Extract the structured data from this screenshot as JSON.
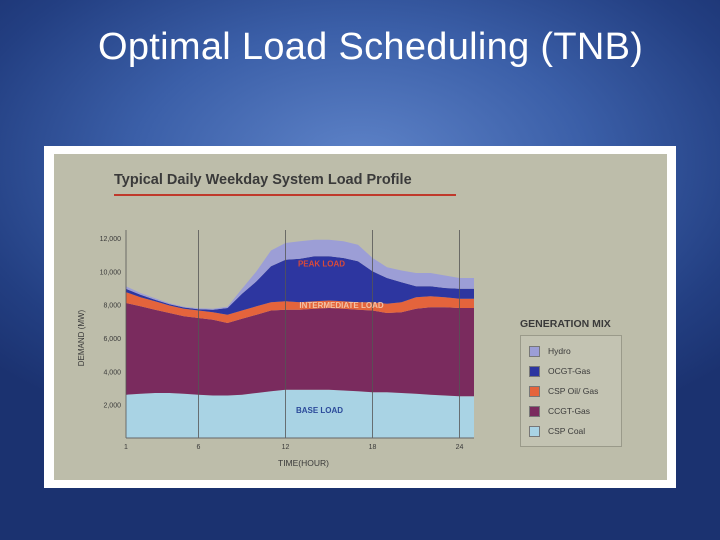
{
  "slide": {
    "title": "Optimal Load Scheduling (TNB)"
  },
  "chart_data": {
    "type": "area",
    "title": "Typical Daily Weekday System Load Profile",
    "xlabel": "TIME(HOUR)",
    "ylabel": "DEMAND (MW)",
    "xlim": [
      1,
      25
    ],
    "ylim": [
      0,
      12000
    ],
    "x_ticks": [
      "1",
      "6",
      "12",
      "18",
      "24"
    ],
    "y_ticks": [
      "2,000",
      "4,000",
      "6,000",
      "8,000",
      "10,000",
      "12,000"
    ],
    "x": [
      1,
      2,
      3,
      4,
      5,
      6,
      7,
      8,
      9,
      10,
      11,
      12,
      13,
      14,
      15,
      16,
      17,
      18,
      19,
      20,
      21,
      22,
      23,
      24,
      25
    ],
    "stacked": true,
    "series": [
      {
        "name": "CSP Coal",
        "color": "#a9d3e4",
        "values": [
          2600,
          2650,
          2700,
          2700,
          2650,
          2600,
          2550,
          2550,
          2600,
          2700,
          2800,
          2900,
          2900,
          2900,
          2900,
          2850,
          2800,
          2750,
          2750,
          2700,
          2650,
          2600,
          2550,
          2500,
          2500
        ]
      },
      {
        "name": "CCGT-Gas",
        "color": "#7a2b5e",
        "values": [
          5500,
          5250,
          5000,
          4800,
          4650,
          4600,
          4550,
          4350,
          4550,
          4700,
          4850,
          4800,
          4800,
          4850,
          4900,
          4900,
          4900,
          4900,
          4750,
          4850,
          5100,
          5250,
          5300,
          5300,
          5300
        ]
      },
      {
        "name": "CSP Oil/ Gas",
        "color": "#e4643c",
        "values": [
          650,
          550,
          500,
          450,
          450,
          450,
          450,
          500,
          500,
          500,
          500,
          500,
          450,
          450,
          450,
          450,
          450,
          500,
          550,
          600,
          700,
          650,
          600,
          550,
          550
        ]
      },
      {
        "name": "OCGT-Gas",
        "color": "#2d36a0",
        "values": [
          200,
          150,
          100,
          80,
          80,
          80,
          150,
          400,
          1000,
          1500,
          2150,
          2500,
          2600,
          2700,
          2650,
          2600,
          2450,
          1850,
          1550,
          1200,
          650,
          600,
          550,
          600,
          600
        ]
      },
      {
        "name": "Hydro",
        "color": "#9c9ed6",
        "values": [
          150,
          100,
          80,
          50,
          50,
          50,
          50,
          80,
          300,
          600,
          950,
          1000,
          1050,
          1000,
          1000,
          1000,
          1000,
          800,
          650,
          700,
          800,
          800,
          750,
          650,
          650
        ]
      }
    ],
    "annotations": [
      "PEAK LOAD",
      "INTERMEDIATE LOAD",
      "BASE LOAD"
    ],
    "legend_title": "GENERATION MIX",
    "legend_placement": "right",
    "grid": "vertical lines at 1, 6, 12, 18, 24"
  }
}
